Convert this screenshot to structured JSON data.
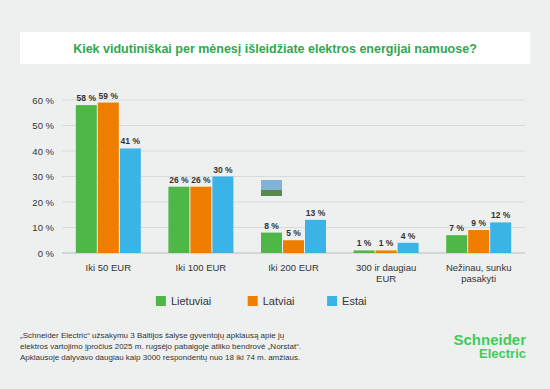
{
  "chart_data": {
    "type": "bar",
    "title": "Kiek vidutiniškai per mėnesį išleidžiate elektros energijai namuose?",
    "categories": [
      "Iki 50 EUR",
      "Iki 100 EUR",
      "Iki 200 EUR",
      "300 ir daugiau EUR",
      "Nežinau, sunku pasakyti"
    ],
    "series": [
      {
        "name": "Lietuviai",
        "color": "#4fb748",
        "values": [
          58,
          26,
          8,
          1,
          7
        ],
        "value_labels": [
          "58 %",
          "26 %",
          "8 %",
          "1 %",
          "7 %"
        ]
      },
      {
        "name": "Latviai",
        "color": "#ee7d00",
        "values": [
          59,
          26,
          5,
          1,
          9
        ],
        "value_labels": [
          "59 %",
          "26 %",
          "5 %",
          "1 %",
          "9 %"
        ]
      },
      {
        "name": "Estai",
        "color": "#3ab3e6",
        "values": [
          41,
          30,
          13,
          4,
          12
        ],
        "value_labels": [
          "41 %",
          "30 %",
          "13 %",
          "4 %",
          "12 %"
        ]
      }
    ],
    "ylim": [
      0,
      60
    ],
    "yticks": [
      {
        "value": 0,
        "label": "0 %"
      },
      {
        "value": 10,
        "label": "10 %"
      },
      {
        "value": 20,
        "label": "20 %"
      },
      {
        "value": 30,
        "label": "30 %"
      },
      {
        "value": 40,
        "label": "40 %"
      },
      {
        "value": 50,
        "label": "50 %"
      },
      {
        "value": 60,
        "label": "60 %"
      }
    ],
    "grid": true,
    "legend": "bottom",
    "data_labels": true,
    "annotations": [
      "„Schneider Electric“ užsakymu 3 Baltijos šalyse gyventojų apklausą apie jų",
      "elektros vartojimo įpročius 2025 m. rugsėjo pabaigoje atliko bendrovė „Norstat“.",
      "Apklausoje dalyvavo daugiau kaip 3000 respondentų nuo 18 iki 74 m. amžiaus."
    ],
    "logo": "Schneider Electric"
  }
}
